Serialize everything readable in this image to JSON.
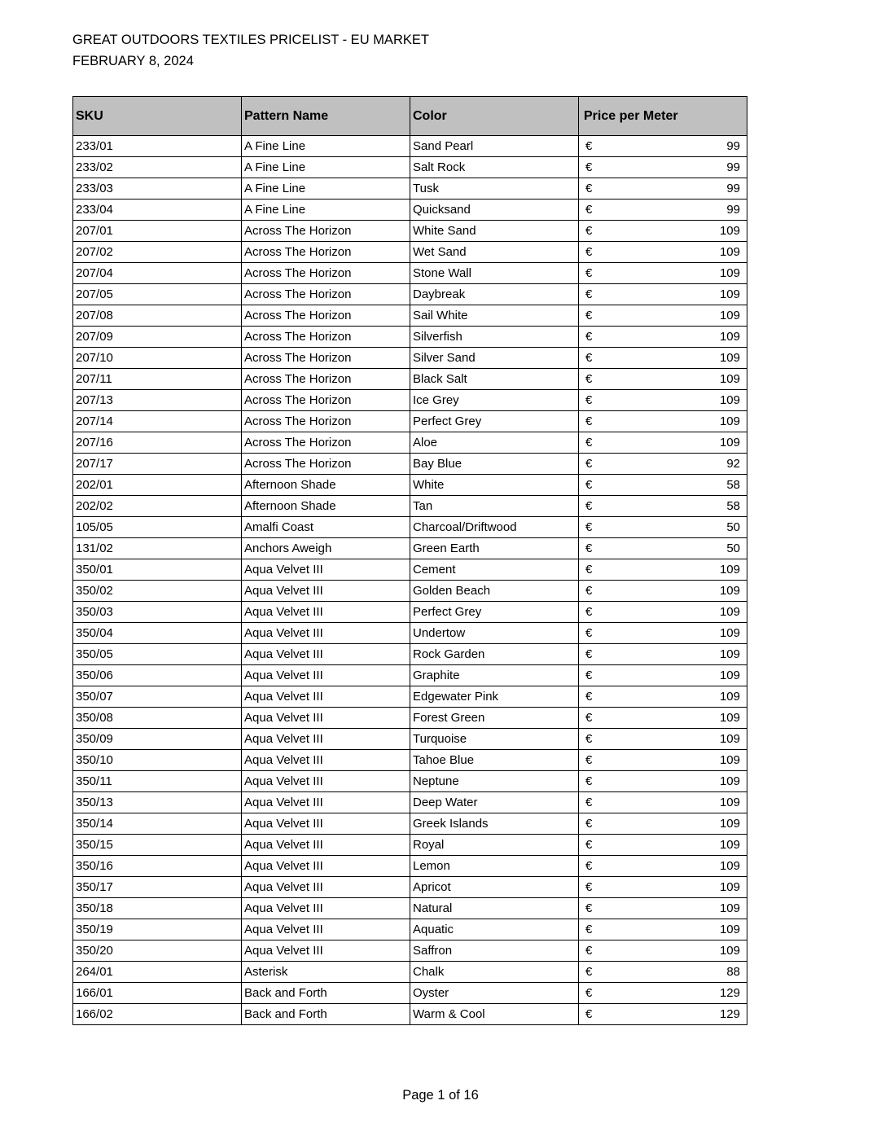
{
  "header": {
    "title": "GREAT OUTDOORS TEXTILES PRICELIST - EU MARKET",
    "date": "FEBRUARY 8, 2024"
  },
  "table": {
    "columns": [
      "SKU",
      "Pattern Name",
      "Color",
      "Price per Meter"
    ],
    "currency": "€",
    "rows": [
      [
        "233/01",
        "A Fine Line",
        "Sand Pearl",
        "99"
      ],
      [
        "233/02",
        "A Fine Line",
        "Salt Rock",
        "99"
      ],
      [
        "233/03",
        "A Fine Line",
        "Tusk",
        "99"
      ],
      [
        "233/04",
        "A Fine Line",
        "Quicksand",
        "99"
      ],
      [
        "207/01",
        "Across The Horizon",
        "White Sand",
        "109"
      ],
      [
        "207/02",
        "Across The Horizon",
        "Wet Sand",
        "109"
      ],
      [
        "207/04",
        "Across The Horizon",
        "Stone Wall",
        "109"
      ],
      [
        "207/05",
        "Across The Horizon",
        "Daybreak",
        "109"
      ],
      [
        "207/08",
        "Across The Horizon",
        "Sail White",
        "109"
      ],
      [
        "207/09",
        "Across The Horizon",
        "Silverfish",
        "109"
      ],
      [
        "207/10",
        "Across The Horizon",
        "Silver Sand",
        "109"
      ],
      [
        "207/11",
        "Across The Horizon",
        "Black Salt",
        "109"
      ],
      [
        "207/13",
        "Across The Horizon",
        "Ice Grey",
        "109"
      ],
      [
        "207/14",
        "Across The Horizon",
        "Perfect Grey",
        "109"
      ],
      [
        "207/16",
        "Across The Horizon",
        "Aloe",
        "109"
      ],
      [
        "207/17",
        "Across The Horizon",
        "Bay Blue",
        "92"
      ],
      [
        "202/01",
        "Afternoon Shade",
        "White",
        "58"
      ],
      [
        "202/02",
        "Afternoon Shade",
        "Tan",
        "58"
      ],
      [
        "105/05",
        "Amalfi Coast",
        "Charcoal/Driftwood",
        "50"
      ],
      [
        "131/02",
        "Anchors Aweigh",
        "Green Earth",
        "50"
      ],
      [
        "350/01",
        "Aqua Velvet III",
        "Cement",
        "109"
      ],
      [
        "350/02",
        "Aqua Velvet III",
        "Golden Beach",
        "109"
      ],
      [
        "350/03",
        "Aqua Velvet III",
        "Perfect Grey",
        "109"
      ],
      [
        "350/04",
        "Aqua Velvet III",
        "Undertow",
        "109"
      ],
      [
        "350/05",
        "Aqua Velvet III",
        "Rock Garden",
        "109"
      ],
      [
        "350/06",
        "Aqua Velvet III",
        "Graphite",
        "109"
      ],
      [
        "350/07",
        "Aqua Velvet III",
        "Edgewater Pink",
        "109"
      ],
      [
        "350/08",
        "Aqua Velvet III",
        "Forest Green",
        "109"
      ],
      [
        "350/09",
        "Aqua Velvet III",
        "Turquoise",
        "109"
      ],
      [
        "350/10",
        "Aqua Velvet III",
        "Tahoe Blue",
        "109"
      ],
      [
        "350/11",
        "Aqua Velvet III",
        "Neptune",
        "109"
      ],
      [
        "350/13",
        "Aqua Velvet III",
        "Deep Water",
        "109"
      ],
      [
        "350/14",
        "Aqua Velvet III",
        "Greek Islands",
        "109"
      ],
      [
        "350/15",
        "Aqua Velvet III",
        "Royal",
        "109"
      ],
      [
        "350/16",
        "Aqua Velvet III",
        "Lemon",
        "109"
      ],
      [
        "350/17",
        "Aqua Velvet III",
        "Apricot",
        "109"
      ],
      [
        "350/18",
        "Aqua Velvet III",
        "Natural",
        "109"
      ],
      [
        "350/19",
        "Aqua Velvet III",
        "Aquatic",
        "109"
      ],
      [
        "350/20",
        "Aqua Velvet III",
        "Saffron",
        "109"
      ],
      [
        "264/01",
        "Asterisk",
        "Chalk",
        "88"
      ],
      [
        "166/01",
        "Back and Forth",
        "Oyster",
        "129"
      ],
      [
        "166/02",
        "Back and Forth",
        "Warm & Cool",
        "129"
      ]
    ]
  },
  "footer": {
    "page": "Page 1 of 16"
  },
  "colors": {
    "header_bg": "#c0c0c0"
  }
}
